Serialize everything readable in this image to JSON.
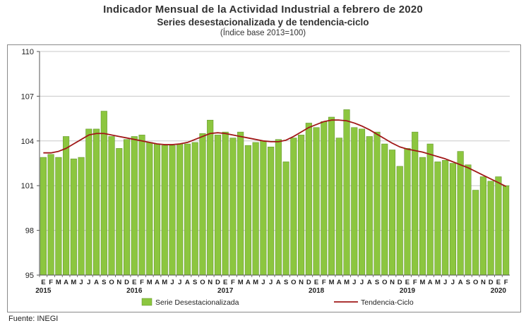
{
  "title": "Indicador Mensual de la Actividad Industrial a febrero de 2020",
  "subtitle": "Series desestacionalizada y de tendencia-ciclo",
  "base_note": "(Índice base 2013=100)",
  "source": "Fuente: INEGI",
  "colors": {
    "bar": "#8cc63f",
    "bar_edge": "#5a8f25",
    "trend": "#a01818",
    "grid": "#c8c8c8",
    "axis": "#555555"
  },
  "chart_data": {
    "type": "bar",
    "ylim": [
      95,
      110
    ],
    "yticks": [
      95,
      98,
      101,
      104,
      107,
      110
    ],
    "grid": true,
    "legend_position": "bottom",
    "month_labels": [
      "E",
      "F",
      "M",
      "A",
      "M",
      "J",
      "J",
      "A",
      "S",
      "O",
      "N",
      "D"
    ],
    "years": [
      {
        "label": "2015",
        "start_index": 0
      },
      {
        "label": "2016",
        "start_index": 12
      },
      {
        "label": "2017",
        "start_index": 24
      },
      {
        "label": "2018",
        "start_index": 36
      },
      {
        "label": "2019",
        "start_index": 48
      },
      {
        "label": "2020",
        "start_index": 60
      }
    ],
    "series": [
      {
        "name": "Serie Desestacionalizada",
        "kind": "bar",
        "values": [
          102.9,
          103.1,
          102.9,
          104.3,
          102.8,
          102.9,
          104.8,
          104.8,
          106.0,
          104.3,
          103.5,
          104.1,
          104.3,
          104.4,
          103.9,
          103.8,
          103.7,
          103.7,
          103.8,
          103.8,
          103.9,
          104.5,
          105.4,
          104.4,
          104.6,
          104.2,
          104.6,
          103.7,
          103.9,
          104.0,
          103.6,
          104.1,
          102.6,
          104.2,
          104.4,
          105.2,
          104.9,
          105.3,
          105.6,
          104.2,
          106.1,
          104.9,
          104.8,
          104.3,
          104.6,
          103.8,
          103.4,
          102.3,
          103.5,
          104.6,
          102.9,
          103.8,
          102.6,
          102.7,
          102.5,
          103.3,
          102.4,
          100.7,
          101.6,
          101.3,
          101.6,
          101.0
        ]
      },
      {
        "name": "Tendencia-Ciclo",
        "kind": "line",
        "values": [
          103.2,
          103.2,
          103.3,
          103.5,
          103.8,
          104.1,
          104.4,
          104.5,
          104.5,
          104.4,
          104.3,
          104.2,
          104.1,
          104.0,
          103.9,
          103.8,
          103.75,
          103.75,
          103.8,
          103.9,
          104.1,
          104.3,
          104.5,
          104.55,
          104.5,
          104.4,
          104.3,
          104.2,
          104.1,
          104.0,
          103.95,
          103.95,
          104.05,
          104.3,
          104.6,
          104.9,
          105.1,
          105.3,
          105.4,
          105.4,
          105.35,
          105.2,
          105.0,
          104.75,
          104.45,
          104.15,
          103.85,
          103.6,
          103.45,
          103.35,
          103.25,
          103.1,
          102.95,
          102.8,
          102.6,
          102.4,
          102.2,
          101.95,
          101.7,
          101.45,
          101.2,
          100.95
        ]
      }
    ]
  }
}
